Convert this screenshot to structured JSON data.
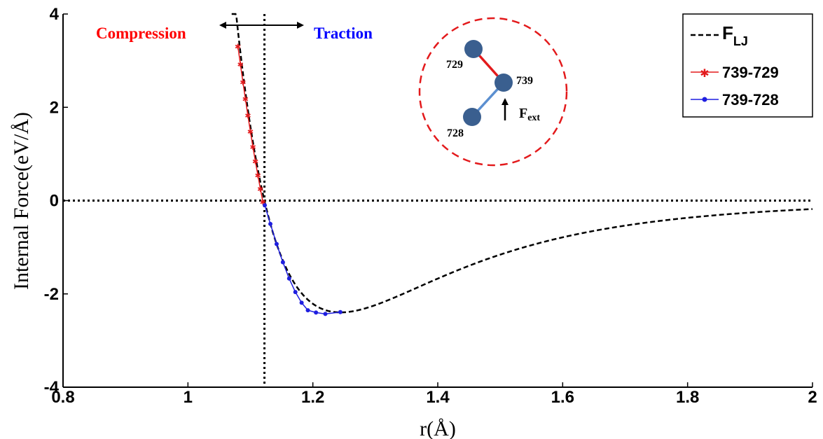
{
  "chart_data": {
    "type": "line",
    "title": "",
    "xlabel": "r(Å)",
    "ylabel": "Internal Force(eV/Å)",
    "xlim": [
      0.8,
      2.0
    ],
    "ylim": [
      -4,
      4
    ],
    "xticks": [
      0.8,
      1,
      1.2,
      1.4,
      1.6,
      1.8,
      2
    ],
    "yticks": [
      -4,
      -2,
      0,
      2,
      4
    ],
    "xtick_labels": [
      "0.8",
      "1",
      "1.2",
      "1.4",
      "1.6",
      "1.8",
      "2"
    ],
    "ytick_labels": [
      "-4",
      "-2",
      "0",
      "2",
      "4"
    ],
    "grid": false,
    "legend_position": "top-right",
    "reference_lines": [
      {
        "orientation": "horizontal",
        "value": 0,
        "style": "dotted"
      },
      {
        "orientation": "vertical",
        "value": 1.1225,
        "style": "dotted"
      }
    ],
    "series": [
      {
        "name": "F",
        "name_subscript": "LJ",
        "color": "#000000",
        "style": "dashed",
        "marker": "none",
        "epsilon": 1,
        "sigma": 1,
        "x": [
          1.07,
          1.08,
          1.09,
          1.1,
          1.11,
          1.12,
          1.13,
          1.14,
          1.15,
          1.16,
          1.17,
          1.18,
          1.19,
          1.2,
          1.22,
          1.244,
          1.27,
          1.3,
          1.35,
          1.4,
          1.45,
          1.5,
          1.55,
          1.6,
          1.65,
          1.7,
          1.75,
          1.8,
          1.85,
          1.9,
          1.95,
          2.0
        ],
        "y": [
          4.25,
          3.19,
          2.26,
          1.44,
          0.72,
          0.08,
          -0.48,
          -0.97,
          -1.38,
          -1.74,
          -2.02,
          -2.24,
          -2.4,
          -2.49,
          -2.55,
          -2.39,
          -2.29,
          -2.08,
          -1.69,
          -1.34,
          -1.06,
          -0.84,
          -0.66,
          -0.52,
          -0.42,
          -0.33,
          -0.27,
          -0.22,
          -0.18,
          -0.15,
          -0.12,
          -0.1
        ]
      },
      {
        "name": "739-729",
        "color": "#e31a1c",
        "style": "solid",
        "marker": "asterisk",
        "x": [
          1.08,
          1.084,
          1.088,
          1.092,
          1.096,
          1.1,
          1.104,
          1.108,
          1.112,
          1.116,
          1.12
        ],
        "y": [
          3.3,
          2.92,
          2.54,
          2.18,
          1.82,
          1.48,
          1.15,
          0.84,
          0.54,
          0.25,
          -0.03
        ]
      },
      {
        "name": "739-728",
        "color": "#1f1fe0",
        "style": "solid",
        "marker": "dot",
        "x": [
          1.123,
          1.132,
          1.142,
          1.152,
          1.162,
          1.172,
          1.182,
          1.192,
          1.205,
          1.22,
          1.244
        ],
        "y": [
          -0.1,
          -0.5,
          -0.93,
          -1.32,
          -1.67,
          -1.96,
          -2.19,
          -2.35,
          -2.4,
          -2.43,
          -2.39
        ]
      }
    ],
    "annotations": [
      {
        "text": "Compression",
        "color": "#ff0000"
      },
      {
        "text": "Traction",
        "color": "#0000ff"
      }
    ]
  },
  "inset": {
    "nodes": [
      {
        "id": "729"
      },
      {
        "id": "739"
      },
      {
        "id": "728"
      }
    ],
    "force_label": "F",
    "force_subscript": "ext",
    "bond_colors": {
      "739-729": "#e31a1c",
      "739-728": "#5b8fd0"
    },
    "node_color": "#3a5f8f",
    "circle_color": "#e31a1c"
  }
}
